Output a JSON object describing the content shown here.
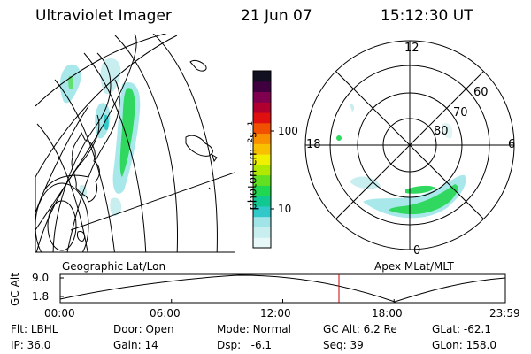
{
  "header": {
    "title": "Ultraviolet Imager",
    "date": "21 Jun 07",
    "time": "15:12:30 UT"
  },
  "colorbar": {
    "label": "photon cm⁻²s⁻¹",
    "ticks": [
      {
        "label": "100",
        "value": 100
      },
      {
        "label": "10",
        "value": 10
      }
    ],
    "colors": [
      "#e8f8f8",
      "#c8eef0",
      "#a0e4e8",
      "#30c8c8",
      "#10c890",
      "#20d850",
      "#60e020",
      "#b0e800",
      "#f0f000",
      "#f8c000",
      "#f89000",
      "#f05000",
      "#e01010",
      "#b00030",
      "#800050",
      "#400040",
      "#101020"
    ]
  },
  "geo_panel": {
    "caption": "Geographic Lat/Lon"
  },
  "polar_panel": {
    "caption": "Apex MLat/MLT",
    "mlt_labels": {
      "top": "12",
      "left": "18",
      "right": "6",
      "bottom": "0"
    },
    "mlat_labels": [
      "60",
      "70",
      "80"
    ]
  },
  "altitude_plot": {
    "ylabel": "GC Alt",
    "y_ticks": [
      "9.0",
      "1.8"
    ],
    "x_ticks": [
      "00:00",
      "06:00",
      "12:00",
      "18:00",
      "23:59"
    ],
    "marker_time": "15:12:30"
  },
  "status": {
    "filter_label": "Flt:",
    "filter_value": "LBHL",
    "door_label": "Door:",
    "door_value": "Open",
    "mode_label": "Mode:",
    "mode_value": "Normal",
    "gcalt_label": "GC Alt:",
    "gcalt_value": "6.2 Re",
    "glat_label": "GLat:",
    "glat_value": "-62.1",
    "ip_label": "IP:",
    "ip_value": "36.0",
    "gain_label": "Gain:",
    "gain_value": "14",
    "dsp_label": "Dsp:",
    "dsp_value": "-6.1",
    "seq_label": "Seq:",
    "seq_value": "39",
    "glon_label": "GLon:",
    "glon_value": "158.0"
  },
  "colors": {
    "line": "#000000",
    "marker": "#cc0000",
    "aurora_green": "#30d860",
    "aurora_cyan": "#a8e8ea"
  }
}
